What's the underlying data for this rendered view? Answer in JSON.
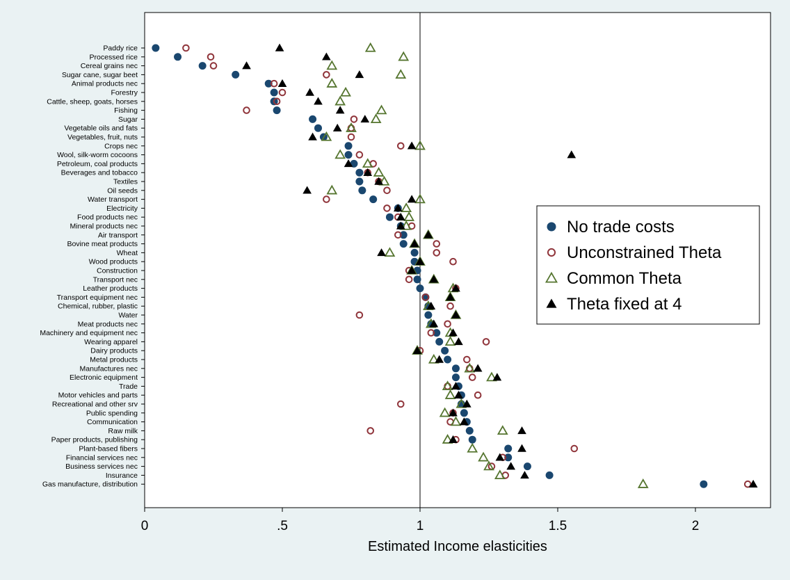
{
  "chart_data": {
    "type": "scatter",
    "title": "",
    "xlabel": "Estimated Income elasticities",
    "ylabel": "",
    "xlim": [
      0,
      2.22
    ],
    "xticks": [
      {
        "value": 0,
        "label": "0"
      },
      {
        "value": 0.5,
        "label": ".5"
      },
      {
        "value": 1,
        "label": "1"
      },
      {
        "value": 1.5,
        "label": "1.5"
      },
      {
        "value": 2,
        "label": "2"
      }
    ],
    "reference_line_x": 1,
    "grid": false,
    "legend_position": "right",
    "categories": [
      "Paddy rice",
      "Processed rice",
      "Cereal grains nec",
      "Sugar cane, sugar beet",
      "Animal products nec",
      "Forestry",
      "Cattle, sheep, goats, horses",
      "Fishing",
      "Sugar",
      "Vegetable oils and fats",
      "Vegetables, fruit, nuts",
      "Crops nec",
      "Wool, silk-worm cocoons",
      "Petroleum, coal products",
      "Beverages and tobacco",
      "Textiles",
      "Oil seeds",
      "Water transport",
      "Electricity",
      "Food products nec",
      "Mineral products nec",
      "Air transport",
      "Bovine meat products",
      "Wheat",
      "Wood products",
      "Construction",
      "Transport nec",
      "Leather products",
      "Transport equipment nec",
      "Chemical, rubber, plastic",
      "Water",
      "Meat products nec",
      "Machinery and equipment nec",
      "Wearing apparel",
      "Dairy products",
      "Metal products",
      "Manufactures nec",
      "Electronic equipment",
      "Trade",
      "Motor vehicles and parts",
      "Recreational and other srv",
      "Public spending",
      "Communication",
      "Raw milk",
      "Paper products, publishing",
      "Plant-based fibers",
      "Financial services nec",
      "Business services nec",
      "Insurance",
      "Gas manufacture, distribution"
    ],
    "series": [
      {
        "name": "No trade costs",
        "marker": "filled-circle",
        "color": "#1a476f",
        "values": [
          0.04,
          0.12,
          0.21,
          0.33,
          0.45,
          0.47,
          0.47,
          0.48,
          0.61,
          0.63,
          0.65,
          0.74,
          0.74,
          0.76,
          0.78,
          0.78,
          0.79,
          0.83,
          0.92,
          0.89,
          0.93,
          0.94,
          0.94,
          0.98,
          0.98,
          0.99,
          0.99,
          1.0,
          1.02,
          1.03,
          1.03,
          1.04,
          1.06,
          1.07,
          1.09,
          1.1,
          1.13,
          1.13,
          1.14,
          1.15,
          1.15,
          1.16,
          1.17,
          1.18,
          1.19,
          1.32,
          1.32,
          1.39,
          1.47,
          2.03
        ]
      },
      {
        "name": "Unconstrained Theta",
        "marker": "hollow-circle",
        "color": "#90353b",
        "values": [
          0.15,
          0.24,
          0.25,
          0.66,
          0.47,
          0.5,
          0.48,
          0.37,
          0.76,
          0.75,
          0.75,
          0.93,
          0.78,
          0.83,
          0.81,
          0.85,
          0.88,
          0.66,
          0.88,
          0.92,
          0.97,
          0.92,
          1.06,
          1.06,
          1.12,
          0.96,
          0.96,
          1.13,
          1.02,
          1.11,
          0.78,
          1.1,
          1.04,
          1.24,
          1.0,
          1.17,
          1.18,
          1.19,
          1.1,
          1.21,
          0.93,
          1.12,
          1.11,
          0.82,
          1.13,
          1.56,
          1.3,
          1.26,
          1.31,
          2.19
        ]
      },
      {
        "name": "Common Theta",
        "marker": "hollow-triangle",
        "color": "#55752f",
        "values": [
          0.82,
          0.94,
          0.68,
          0.93,
          0.68,
          0.73,
          0.71,
          0.86,
          0.84,
          0.75,
          0.66,
          1.0,
          0.71,
          0.81,
          0.85,
          0.87,
          0.68,
          1.0,
          0.95,
          0.96,
          0.95,
          1.03,
          0.98,
          0.89,
          1.0,
          0.97,
          1.05,
          1.12,
          1.11,
          1.03,
          1.13,
          1.04,
          1.11,
          1.11,
          0.99,
          1.05,
          1.18,
          1.26,
          1.1,
          1.11,
          1.15,
          1.09,
          1.13,
          1.3,
          1.1,
          1.19,
          1.23,
          1.25,
          1.29,
          1.81
        ]
      },
      {
        "name": "Theta fixed at 4",
        "marker": "filled-triangle",
        "color": "#000000",
        "values": [
          0.49,
          0.66,
          0.37,
          0.78,
          0.5,
          0.6,
          0.63,
          0.71,
          0.8,
          0.7,
          0.61,
          0.97,
          1.55,
          0.74,
          0.81,
          0.85,
          0.59,
          0.97,
          0.92,
          0.93,
          0.93,
          1.03,
          0.98,
          0.86,
          1.0,
          0.97,
          1.05,
          1.13,
          1.11,
          1.04,
          1.13,
          1.05,
          1.12,
          1.14,
          0.99,
          1.07,
          1.21,
          1.28,
          1.13,
          1.14,
          1.17,
          1.12,
          1.16,
          1.37,
          1.12,
          1.37,
          1.29,
          1.33,
          1.38,
          2.21
        ]
      }
    ]
  }
}
